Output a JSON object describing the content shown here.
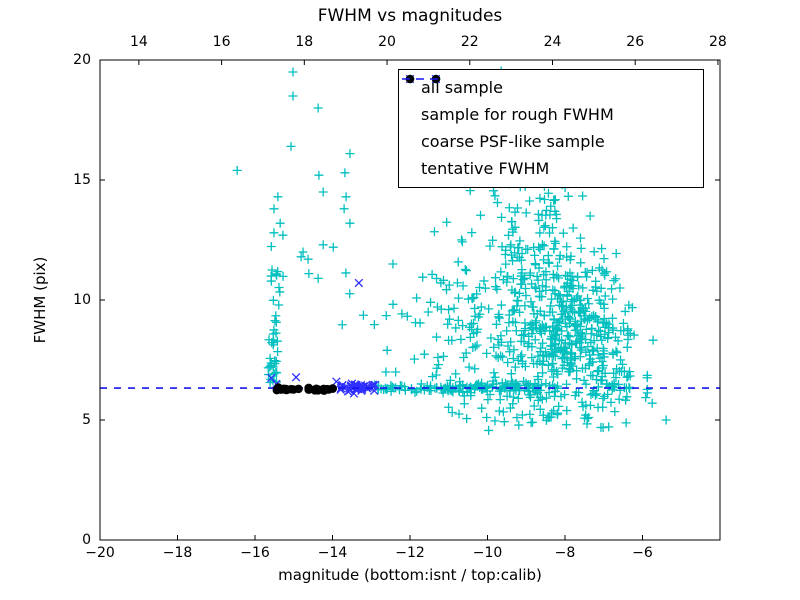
{
  "title": "FWHM vs magnitudes",
  "colors": {
    "all_sample": "#00bfbf",
    "rough_fwhm": "#3030ff",
    "psf_like": "#000000",
    "tentative_line": "#1515ee",
    "axis": "#000000"
  },
  "legend": {
    "entries": [
      {
        "label": "all sample",
        "marker": "plus",
        "color": "#00bfbf"
      },
      {
        "label": "sample for rough FWHM",
        "marker": "cross",
        "color": "#3030ff"
      },
      {
        "label": "coarse PSF-like sample",
        "marker": "dot",
        "color": "#000000"
      },
      {
        "label": "tentative FWHM",
        "marker": "dash",
        "color": "#1515ee"
      }
    ]
  },
  "chart_data": {
    "type": "scatter",
    "title": "FWHM vs magnitudes",
    "xlabel": "magnitude (bottom:isnt / top:calib)",
    "ylabel": "FWHM (pix)",
    "xlim": [
      -20,
      -4
    ],
    "ylim": [
      0,
      20
    ],
    "top_xlim": [
      13.06,
      28.05
    ],
    "grid": false,
    "legend_position": "upper center",
    "xticks": [
      -20,
      -18,
      -16,
      -14,
      -12,
      -10,
      -8,
      -6
    ],
    "xtick_labels": [
      "−20",
      "−18",
      "−16",
      "−14",
      "−12",
      "−10",
      "−8",
      "−6"
    ],
    "yticks": [
      0,
      5,
      10,
      15,
      20
    ],
    "ytick_labels": [
      "0",
      "5",
      "10",
      "15",
      "20"
    ],
    "top_xticks": [
      14,
      16,
      18,
      20,
      22,
      24,
      26,
      28
    ],
    "top_xtick_labels": [
      "14",
      "16",
      "18",
      "20",
      "22",
      "24",
      "26",
      "28"
    ],
    "tentative_fwhm": 6.33,
    "seed": 1234,
    "series": [
      {
        "name": "all sample",
        "marker": "plus",
        "color": "#00bfbf",
        "points": [
          [
            -16.46,
            15.4
          ],
          [
            -15.02,
            19.5
          ],
          [
            -15.02,
            18.5
          ],
          [
            -14.37,
            18.0
          ],
          [
            -15.07,
            16.4
          ],
          [
            -13.55,
            16.1
          ],
          [
            -13.68,
            15.3
          ],
          [
            -14.35,
            15.2
          ],
          [
            -14.24,
            14.5
          ],
          [
            -13.65,
            14.3
          ],
          [
            -15.41,
            14.3
          ],
          [
            -13.7,
            13.8
          ],
          [
            -15.51,
            13.8
          ],
          [
            -13.55,
            13.2
          ],
          [
            -15.35,
            13.2
          ],
          [
            -15.51,
            12.8
          ],
          [
            -15.28,
            12.7
          ],
          [
            -14.24,
            12.3
          ],
          [
            -13.98,
            12.2
          ],
          [
            -14.76,
            12.0
          ],
          [
            -14.81,
            11.8
          ],
          [
            -14.63,
            11.7
          ],
          [
            -14.61,
            11.1
          ],
          [
            -14.37,
            10.9
          ],
          [
            -11.53,
            9.5
          ],
          [
            -12.62,
            7.0
          ],
          [
            -12.37,
            7.0
          ],
          [
            -9.24,
            5.1
          ],
          [
            -8.56,
            5.2
          ],
          [
            -5.75,
            5.7
          ],
          [
            -5.39,
            5.0
          ],
          [
            -7.35,
            13.5
          ],
          [
            -7.79,
            13.0
          ]
        ],
        "clusters": [
          {
            "name": "upper-column",
            "kind": "gauss",
            "mag": -15.5,
            "fwhm": 10.3,
            "sig_mag": 0.12,
            "sig_fwhm": 1.1,
            "n": 16
          },
          {
            "name": "lower-column",
            "kind": "gauss",
            "mag": -15.53,
            "fwhm": 7.3,
            "sig_mag": 0.09,
            "sig_fwhm": 0.75,
            "n": 26
          },
          {
            "name": "band-left",
            "kind": "band",
            "mag_range": [
              -12.95,
              -11.0
            ],
            "fwhm": 6.33,
            "jitter": 0.09,
            "n": 42
          },
          {
            "name": "band-mid",
            "kind": "band",
            "mag_range": [
              -11.0,
              -8.6
            ],
            "fwhm": 6.33,
            "jitter": 0.13,
            "n": 95
          },
          {
            "name": "band-right",
            "kind": "band",
            "mag_range": [
              -6.9,
              -5.7
            ],
            "fwhm": 6.3,
            "jitter": 0.15,
            "n": 10
          },
          {
            "name": "cloud-core",
            "kind": "gauss",
            "mag": -7.9,
            "fwhm": 8.7,
            "sig_mag": 0.7,
            "sig_fwhm": 1.6,
            "n": 330
          },
          {
            "name": "cloud-mid",
            "kind": "gauss",
            "mag": -8.7,
            "fwhm": 10.0,
            "sig_mag": 0.85,
            "sig_fwhm": 2.2,
            "n": 140
          },
          {
            "name": "cloud-upper",
            "kind": "gauss",
            "mag": -8.9,
            "fwhm": 14.2,
            "sig_mag": 0.75,
            "sig_fwhm": 2.2,
            "n": 85
          },
          {
            "name": "cloud-top",
            "kind": "gauss",
            "mag": -9.2,
            "fwhm": 17.5,
            "sig_mag": 0.6,
            "sig_fwhm": 1.4,
            "n": 35
          },
          {
            "name": "cloud-left-wing",
            "kind": "gauss",
            "mag": -10.2,
            "fwhm": 8.7,
            "sig_mag": 0.75,
            "sig_fwhm": 1.8,
            "n": 75
          },
          {
            "name": "cloud-right-wing",
            "kind": "gauss",
            "mag": -6.8,
            "fwhm": 7.4,
            "sig_mag": 0.45,
            "sig_fwhm": 1.2,
            "n": 55
          },
          {
            "name": "below-band",
            "kind": "gauss",
            "mag": -8.2,
            "fwhm": 5.6,
            "sig_mag": 1.2,
            "sig_fwhm": 0.45,
            "n": 40
          },
          {
            "name": "cloud-left-sparse",
            "kind": "gauss",
            "mag": -11.1,
            "fwhm": 9.3,
            "sig_mag": 0.6,
            "sig_fwhm": 1.9,
            "n": 30
          },
          {
            "name": "mid-gap-sparse",
            "kind": "gauss",
            "mag": -12.3,
            "fwhm": 9.0,
            "sig_mag": 0.7,
            "sig_fwhm": 1.7,
            "n": 10
          }
        ]
      },
      {
        "name": "sample for rough FWHM",
        "marker": "cross",
        "color": "#3030ff",
        "points": [
          [
            -13.32,
            10.71
          ],
          [
            -15.58,
            6.75
          ],
          [
            -14.94,
            6.78
          ],
          [
            -15.45,
            6.5
          ],
          [
            -13.9,
            6.6
          ]
        ],
        "clusters": [
          {
            "name": "rough-band",
            "kind": "band",
            "mag_range": [
              -13.85,
              -12.9
            ],
            "fwhm": 6.35,
            "jitter": 0.09,
            "n": 38
          }
        ]
      },
      {
        "name": "coarse PSF-like sample",
        "marker": "dot",
        "color": "#000000",
        "points": [],
        "clusters": [
          {
            "name": "psf-sausage",
            "kind": "band",
            "mag_range": [
              -15.45,
              -13.95
            ],
            "fwhm": 6.28,
            "jitter": 0.035,
            "n": 26
          }
        ]
      }
    ]
  }
}
